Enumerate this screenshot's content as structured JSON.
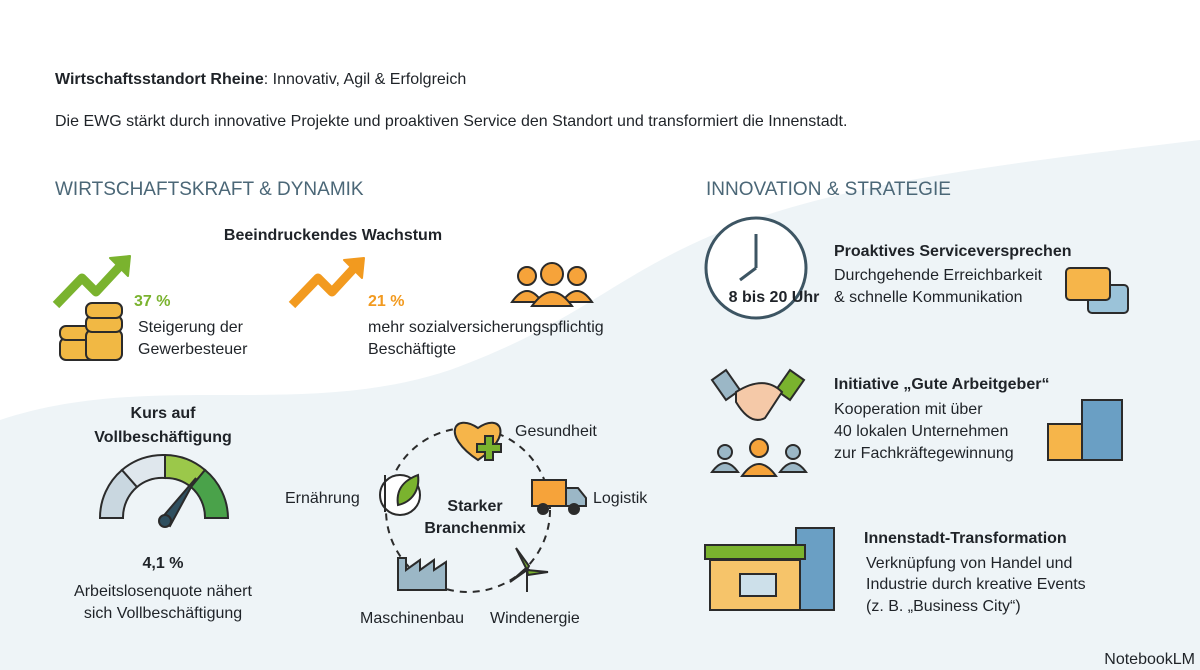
{
  "header": {
    "title_bold": "Wirtschaftsstandort Rheine",
    "title_rest": ": Innovativ, Agil & Erfolgreich",
    "subtitle": "Die EWG stärkt durch innovative Projekte und proaktiven Service den Standort und transformiert die Innenstadt."
  },
  "left": {
    "heading": "WIRTSCHAFTSKRAFT & DYNAMIK",
    "growth": {
      "title": "Beeindruckendes Wachstum",
      "stats": [
        {
          "value": "37 %",
          "label_lines": [
            "Steigerung der",
            "Gewerbesteuer"
          ]
        },
        {
          "value": "21 %",
          "label_lines": [
            "mehr sozialversicherungspflichtig",
            "Beschäftigte"
          ]
        }
      ]
    },
    "employment": {
      "title_lines": [
        "Kurs auf",
        "Vollbeschäftigung"
      ],
      "value": "4,1 %",
      "label_lines": [
        "Arbeitslosenquote nähert",
        "sich Vollbeschäftigung"
      ]
    },
    "mix": {
      "center_lines": [
        "Starker",
        "Branchenmix"
      ],
      "sectors": [
        "Gesundheit",
        "Logistik",
        "Windenergie",
        "Maschinenbau",
        "Ernährung"
      ]
    }
  },
  "right": {
    "heading": "INNOVATION & STRATEGIE",
    "items": [
      {
        "title": "Proaktives Serviceversprechen",
        "lines": [
          "Durchgehende Erreichbarkeit",
          "& schnelle Kommunikation"
        ],
        "badge": "8 bis 20 Uhr"
      },
      {
        "title": "Initiative „Gute Arbeitgeber“",
        "lines": [
          "Kooperation mit über",
          "40 lokalen Unternehmen",
          "zur Fachkräftegewinnung"
        ]
      },
      {
        "title": "Innenstadt-Transformation",
        "lines": [
          "Verknüpfung von Handel und",
          "Industrie durch kreative Events",
          "(z. B. „Business City“)"
        ]
      }
    ]
  },
  "footer": {
    "brand": "NotebookLM"
  }
}
